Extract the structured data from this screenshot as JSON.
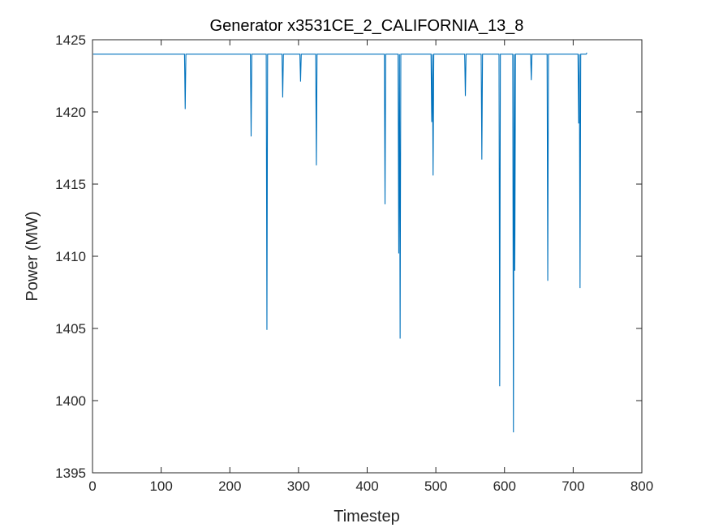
{
  "chart_data": {
    "type": "line",
    "title": "Generator x3531CE_2_CALIFORNIA_13_8",
    "xlabel": "Timestep",
    "ylabel": "Power (MW)",
    "xlim": [
      0,
      800
    ],
    "ylim": [
      1395,
      1425
    ],
    "xticks": [
      0,
      100,
      200,
      300,
      400,
      500,
      600,
      700,
      800
    ],
    "yticks": [
      1395,
      1400,
      1405,
      1410,
      1415,
      1420,
      1425
    ],
    "grid": false,
    "legend": "none",
    "colors": {
      "line": "#0072BD",
      "axis": "#262626"
    },
    "series": [
      {
        "baseline": 1424,
        "x_range": [
          1,
          720
        ],
        "end_value": 1424.1,
        "dips": [
          {
            "x": 135,
            "y": 1420.2
          },
          {
            "x": 231,
            "y": 1418.3
          },
          {
            "x": 254,
            "y": 1404.9
          },
          {
            "x": 277,
            "y": 1421.0
          },
          {
            "x": 303,
            "y": 1422.1
          },
          {
            "x": 326,
            "y": 1416.3
          },
          {
            "x": 426,
            "y": 1413.6
          },
          {
            "x": 446,
            "y": 1410.2
          },
          {
            "x": 448,
            "y": 1404.3
          },
          {
            "x": 494,
            "y": 1419.3
          },
          {
            "x": 496,
            "y": 1415.6
          },
          {
            "x": 543,
            "y": 1421.1
          },
          {
            "x": 567,
            "y": 1416.7
          },
          {
            "x": 593,
            "y": 1401.0
          },
          {
            "x": 613,
            "y": 1397.8
          },
          {
            "x": 615,
            "y": 1409.0
          },
          {
            "x": 639,
            "y": 1422.2
          },
          {
            "x": 663,
            "y": 1408.3
          },
          {
            "x": 708,
            "y": 1419.2
          },
          {
            "x": 710,
            "y": 1407.8
          }
        ]
      }
    ]
  }
}
